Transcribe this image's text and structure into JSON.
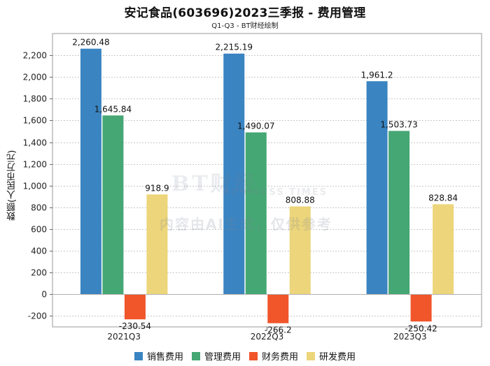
{
  "chart_data": {
    "type": "bar",
    "title": "安记食品(603696)2023三季报 - 费用管理",
    "subtitle": "Q1-Q3 - BT财经绘制",
    "xlabel": "",
    "ylabel": "数额(人民币万元)",
    "categories": [
      "2021Q3",
      "2022Q3",
      "2023Q3"
    ],
    "ylim": [
      -300,
      2400
    ],
    "yticks": [
      -200,
      0,
      200,
      400,
      600,
      800,
      1000,
      1200,
      1400,
      1600,
      1800,
      2000,
      2200
    ],
    "ytick_labels": [
      "-200",
      "0",
      "200",
      "400",
      "600",
      "800",
      "1,000",
      "1,200",
      "1,400",
      "1,600",
      "1,800",
      "2,000",
      "2,200"
    ],
    "grid": true,
    "legend_position": "bottom",
    "series": [
      {
        "name": "销售费用",
        "color": "#3a84c1",
        "values": [
          2260.48,
          2215.19,
          1961.2
        ],
        "labels": [
          "2,260.48",
          "2,215.19",
          "1,961.2"
        ]
      },
      {
        "name": "管理费用",
        "color": "#45a774",
        "values": [
          1645.84,
          1490.07,
          1503.73
        ],
        "labels": [
          "1,645.84",
          "1,490.07",
          "1,503.73"
        ]
      },
      {
        "name": "财务费用",
        "color": "#f1552a",
        "values": [
          -230.54,
          -266.2,
          -250.42
        ],
        "labels": [
          "-230.54",
          "-266.2",
          "-250.42"
        ]
      },
      {
        "name": "研发费用",
        "color": "#ecd57a",
        "values": [
          918.9,
          808.88,
          828.84
        ],
        "labels": [
          "918.9",
          "808.88",
          "828.84"
        ]
      }
    ]
  },
  "watermark": {
    "logo": "BT财经",
    "logo_sub": "BUSINESS TIMES",
    "text": "内容由AI生成，仅供参考"
  }
}
